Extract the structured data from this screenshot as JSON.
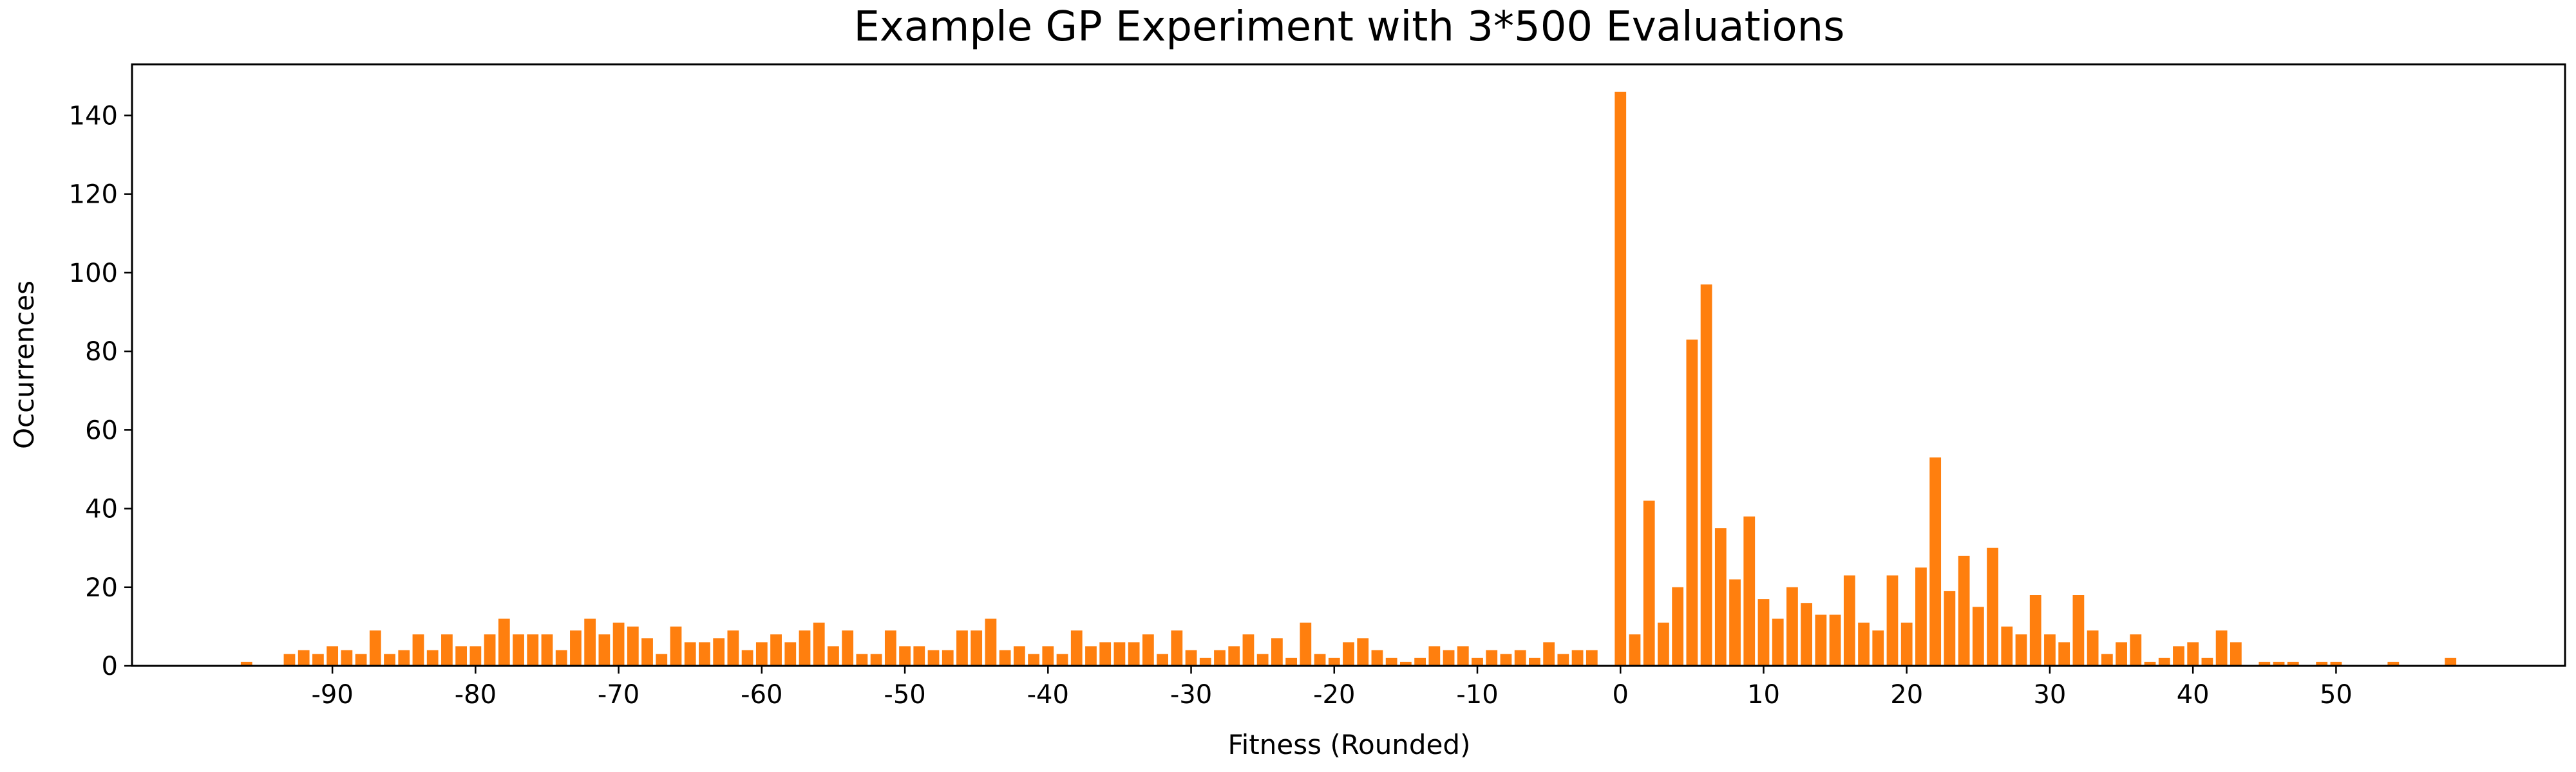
{
  "chart_data": {
    "type": "bar",
    "title": "Example GP Experiment with 3*500 Evaluations",
    "xlabel": "Fitness (Rounded)",
    "ylabel": "Occurrences",
    "xlim": [
      -104,
      66
    ],
    "ylim": [
      0,
      153
    ],
    "xticks": [
      -90,
      -80,
      -70,
      -60,
      -50,
      -40,
      -30,
      -20,
      -10,
      0,
      10,
      20,
      30,
      40,
      50
    ],
    "xtick_labels": [
      "-90",
      "-80",
      "-70",
      "-60",
      "-50",
      "-40",
      "-30",
      "-20",
      "-10",
      "0",
      "10",
      "20",
      "30",
      "40",
      "50"
    ],
    "yticks": [
      0,
      20,
      40,
      60,
      80,
      100,
      120,
      140
    ],
    "ytick_labels": [
      "0",
      "20",
      "40",
      "60",
      "80",
      "100",
      "120",
      "140"
    ],
    "grid": false,
    "legend": "none",
    "bar_color": "#ff7f0e",
    "x": [
      -96,
      -95,
      -94,
      -93,
      -92,
      -91,
      -90,
      -89,
      -88,
      -87,
      -86,
      -85,
      -84,
      -83,
      -82,
      -81,
      -80,
      -79,
      -78,
      -77,
      -76,
      -75,
      -74,
      -73,
      -72,
      -71,
      -70,
      -69,
      -68,
      -67,
      -66,
      -65,
      -64,
      -63,
      -62,
      -61,
      -60,
      -59,
      -58,
      -57,
      -56,
      -55,
      -54,
      -53,
      -52,
      -51,
      -50,
      -49,
      -48,
      -47,
      -46,
      -45,
      -44,
      -43,
      -42,
      -41,
      -40,
      -39,
      -38,
      -37,
      -36,
      -35,
      -34,
      -33,
      -32,
      -31,
      -30,
      -29,
      -28,
      -27,
      -26,
      -25,
      -24,
      -23,
      -22,
      -21,
      -20,
      -19,
      -18,
      -17,
      -16,
      -15,
      -14,
      -13,
      -12,
      -11,
      -10,
      -9,
      -8,
      -7,
      -6,
      -5,
      -4,
      -3,
      -2,
      -1,
      0,
      1,
      2,
      3,
      4,
      5,
      6,
      7,
      8,
      9,
      10,
      11,
      12,
      13,
      14,
      15,
      16,
      17,
      18,
      19,
      20,
      21,
      22,
      23,
      24,
      25,
      26,
      27,
      28,
      29,
      30,
      31,
      32,
      33,
      34,
      35,
      36,
      37,
      38,
      39,
      40,
      41,
      42,
      43,
      44,
      45,
      46,
      47,
      48,
      49,
      50,
      51,
      52,
      53,
      54,
      55,
      56,
      57,
      58
    ],
    "values": [
      1,
      0,
      0,
      3,
      4,
      3,
      5,
      4,
      3,
      9,
      3,
      4,
      8,
      4,
      8,
      5,
      5,
      8,
      12,
      8,
      8,
      8,
      4,
      9,
      12,
      8,
      11,
      10,
      7,
      3,
      10,
      6,
      6,
      7,
      9,
      4,
      6,
      8,
      6,
      9,
      11,
      5,
      9,
      3,
      3,
      9,
      5,
      5,
      4,
      4,
      9,
      9,
      12,
      4,
      5,
      3,
      5,
      3,
      9,
      5,
      6,
      6,
      6,
      8,
      3,
      9,
      4,
      2,
      4,
      5,
      8,
      3,
      7,
      2,
      11,
      3,
      2,
      6,
      7,
      4,
      2,
      1,
      2,
      5,
      4,
      5,
      2,
      4,
      3,
      4,
      2,
      6,
      3,
      4,
      4,
      0,
      146,
      8,
      42,
      11,
      20,
      83,
      97,
      35,
      22,
      38,
      17,
      12,
      20,
      16,
      13,
      13,
      23,
      11,
      9,
      23,
      11,
      25,
      53,
      19,
      28,
      15,
      30,
      10,
      8,
      18,
      8,
      6,
      18,
      9,
      3,
      6,
      8,
      1,
      2,
      5,
      6,
      2,
      9,
      6,
      0,
      1,
      1,
      1,
      0,
      1,
      1,
      0,
      0,
      0,
      1,
      0,
      0,
      0,
      2
    ]
  }
}
